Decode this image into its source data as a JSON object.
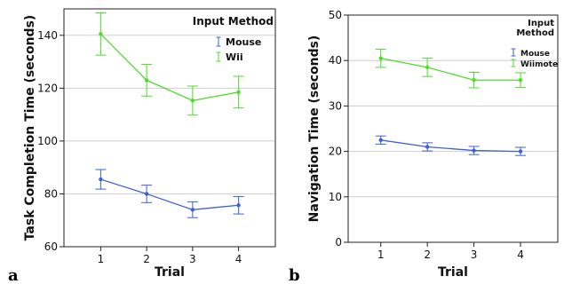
{
  "chart_data": [
    {
      "panel_label": "a",
      "type": "line",
      "x": [
        1,
        2,
        3,
        4
      ],
      "xlabel": "Trial",
      "ylabel": "Task Completion Time (seconds)",
      "ylim": [
        60,
        150
      ],
      "yticks": [
        60,
        80,
        100,
        120,
        140
      ],
      "xticks": [
        1,
        2,
        3,
        4
      ],
      "grid": "horizontal",
      "legend": {
        "title": "Input Method",
        "position": "top-right"
      },
      "series": [
        {
          "name": "Mouse",
          "color": "#3f5fd9",
          "values": [
            85.5,
            80.0,
            74.0,
            75.7
          ],
          "err": [
            3.7,
            3.3,
            3.0,
            3.3
          ]
        },
        {
          "name": "Wii",
          "color": "#4fdb2a",
          "values": [
            140.5,
            123.0,
            115.3,
            118.5
          ],
          "err": [
            8.0,
            6.0,
            5.5,
            6.0
          ]
        }
      ]
    },
    {
      "panel_label": "b",
      "type": "line",
      "x": [
        1,
        2,
        3,
        4
      ],
      "xlabel": "Trial",
      "ylabel": "Navigation Time (seconds)",
      "ylim": [
        0,
        50
      ],
      "yticks": [
        0,
        10,
        20,
        30,
        40,
        50
      ],
      "xticks": [
        1,
        2,
        3,
        4
      ],
      "grid": "horizontal",
      "legend": {
        "title": "Input Method",
        "position": "top-right"
      },
      "series": [
        {
          "name": "Mouse",
          "color": "#3f5fd9",
          "values": [
            22.5,
            21.0,
            20.2,
            20.0
          ],
          "err": [
            0.9,
            0.9,
            0.9,
            0.9
          ]
        },
        {
          "name": "Wiimote",
          "color": "#4fdb2a",
          "values": [
            40.5,
            38.5,
            35.7,
            35.7
          ],
          "err": [
            2.0,
            2.0,
            1.7,
            1.6
          ]
        }
      ]
    }
  ]
}
